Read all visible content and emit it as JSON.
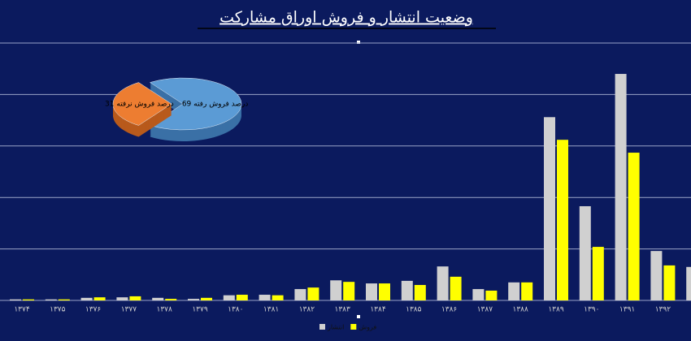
{
  "chart_data": [
    {
      "type": "bar",
      "title": "وضعیت انتشار و فروش اوراق مشارکت",
      "categories": [
        "۱۳۷۴",
        "۱۳۷۵",
        "۱۳۷۶",
        "۱۳۷۷",
        "۱۳۷۸",
        "۱۳۷۹",
        "۱۳۸۰",
        "۱۳۸۱",
        "۱۳۸۲",
        "۱۳۸۳",
        "۱۳۸۴",
        "۱۳۸۵",
        "۱۳۸۶",
        "۱۳۸۷",
        "۱۳۸۸",
        "۱۳۸۹",
        "۱۳۹۰",
        "۱۳۹۱",
        "۱۳۹۲",
        null
      ],
      "series": [
        {
          "name": "انتشار",
          "color": "#d0d0d0",
          "values": [
            0.02,
            0.02,
            0.05,
            0.06,
            0.05,
            0.03,
            0.1,
            0.11,
            0.22,
            0.39,
            0.33,
            0.38,
            0.66,
            0.22,
            0.35,
            3.56,
            1.83,
            4.4,
            0.96,
            0.65
          ]
        },
        {
          "name": "فروش",
          "color": "#ffff00",
          "values": [
            0.02,
            0.02,
            0.06,
            0.08,
            0.03,
            0.05,
            0.11,
            0.1,
            0.25,
            0.36,
            0.33,
            0.3,
            0.46,
            0.19,
            0.35,
            3.12,
            1.04,
            2.87,
            0.68,
            null
          ]
        }
      ],
      "ylim": [
        0,
        5
      ],
      "yticks": [
        0,
        1,
        2,
        3,
        4,
        5
      ],
      "show_ytick_labels": false,
      "grid": true,
      "legend": "bottom"
    },
    {
      "type": "pie",
      "values": [
        69,
        31
      ],
      "value_labels": [
        "69 درصد فروش رفته",
        "31 درصد فروش نرفته"
      ],
      "colors": [
        "#5b9bd5",
        "#ed7d31"
      ]
    }
  ]
}
